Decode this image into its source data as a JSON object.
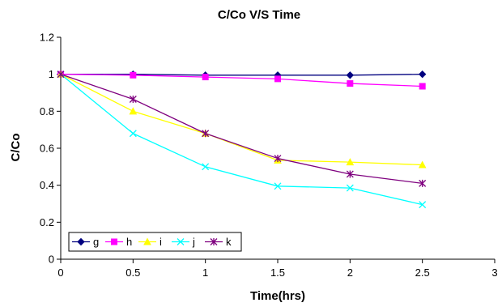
{
  "chart_data": {
    "type": "line",
    "title": "C/Co V/S Time",
    "xlabel": "Time(hrs)",
    "ylabel": "C/Co",
    "xlim": [
      0,
      3
    ],
    "ylim": [
      0,
      1.2
    ],
    "xticks": [
      "0",
      "0.5",
      "1",
      "1.5",
      "2",
      "2.5",
      "3"
    ],
    "yticks": [
      "0",
      "0.2",
      "0.4",
      "0.6",
      "0.8",
      "1",
      "1.2"
    ],
    "grid": false,
    "legend_position": "bottom-left",
    "x": [
      0,
      0.5,
      1,
      1.5,
      2,
      2.5
    ],
    "series": [
      {
        "name": "g",
        "color": "#00007F",
        "marker": "diamond",
        "values": [
          1.0,
          1.0,
          0.995,
          0.995,
          0.995,
          1.0
        ]
      },
      {
        "name": "h",
        "color": "#FF00FF",
        "marker": "square",
        "values": [
          1.0,
          0.995,
          0.985,
          0.975,
          0.95,
          0.935
        ]
      },
      {
        "name": "i",
        "color": "#FFFF00",
        "marker": "triangle",
        "values": [
          1.0,
          0.8,
          0.68,
          0.535,
          0.525,
          0.51
        ]
      },
      {
        "name": "j",
        "color": "#00FFFF",
        "marker": "x",
        "values": [
          1.0,
          0.68,
          0.5,
          0.395,
          0.385,
          0.295
        ]
      },
      {
        "name": "k",
        "color": "#7F007F",
        "marker": "star",
        "values": [
          1.0,
          0.865,
          0.68,
          0.545,
          0.46,
          0.41
        ]
      }
    ]
  }
}
